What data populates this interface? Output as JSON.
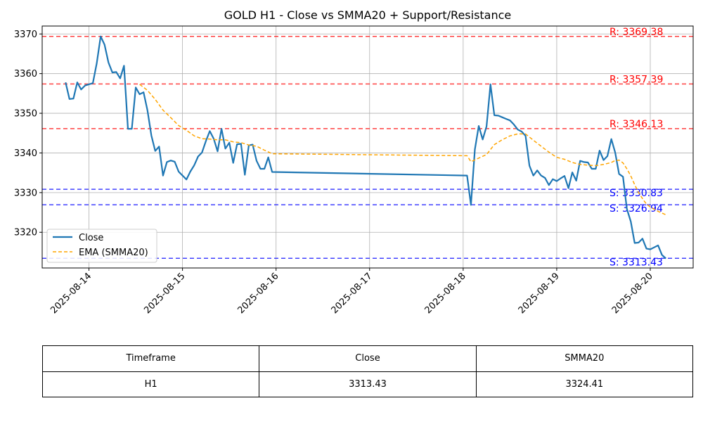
{
  "chart_data": {
    "type": "line",
    "title": "GOLD H1 - Close vs SMMA20 + Support/Resistance",
    "xlabel": "",
    "ylabel": "",
    "xlim": [
      "2025-08-13T12:00",
      "2025-08-20T11:00"
    ],
    "ylim": [
      3311.0,
      3372.0
    ],
    "y_ticks": [
      3320,
      3330,
      3340,
      3350,
      3360,
      3370
    ],
    "x_ticks": [
      "2025-08-14",
      "2025-08-15",
      "2025-08-16",
      "2025-08-17",
      "2025-08-18",
      "2025-08-19",
      "2025-08-20"
    ],
    "grid": true,
    "legend_position": "lower-left",
    "series": [
      {
        "name": "Close",
        "color": "#1f77b4",
        "style": "solid",
        "points": [
          [
            "2025-08-13T18:00",
            3357.8
          ],
          [
            "2025-08-13T19:00",
            3353.6
          ],
          [
            "2025-08-13T20:00",
            3353.7
          ],
          [
            "2025-08-13T21:00",
            3357.8
          ],
          [
            "2025-08-13T22:00",
            3356.0
          ],
          [
            "2025-08-13T23:00",
            3357.0
          ],
          [
            "2025-08-14T01:00",
            3357.6
          ],
          [
            "2025-08-14T02:00",
            3362.6
          ],
          [
            "2025-08-14T03:00",
            3369.4
          ],
          [
            "2025-08-14T04:00",
            3367.3
          ],
          [
            "2025-08-14T05:00",
            3362.8
          ],
          [
            "2025-08-14T06:00",
            3360.3
          ],
          [
            "2025-08-14T07:00",
            3360.4
          ],
          [
            "2025-08-14T08:00",
            3358.8
          ],
          [
            "2025-08-14T09:00",
            3362.0
          ],
          [
            "2025-08-14T10:00",
            3346.1
          ],
          [
            "2025-08-14T11:00",
            3346.1
          ],
          [
            "2025-08-14T12:00",
            3356.5
          ],
          [
            "2025-08-14T13:00",
            3354.8
          ],
          [
            "2025-08-14T14:00",
            3355.3
          ],
          [
            "2025-08-14T15:00",
            3350.8
          ],
          [
            "2025-08-14T16:00",
            3344.4
          ],
          [
            "2025-08-14T17:00",
            3340.5
          ],
          [
            "2025-08-14T18:00",
            3341.6
          ],
          [
            "2025-08-14T19:00",
            3334.3
          ],
          [
            "2025-08-14T20:00",
            3337.7
          ],
          [
            "2025-08-14T21:00",
            3338.1
          ],
          [
            "2025-08-14T22:00",
            3337.8
          ],
          [
            "2025-08-14T23:00",
            3335.3
          ],
          [
            "2025-08-15T01:00",
            3333.3
          ],
          [
            "2025-08-15T02:00",
            3335.3
          ],
          [
            "2025-08-15T03:00",
            3336.9
          ],
          [
            "2025-08-15T04:00",
            3339.1
          ],
          [
            "2025-08-15T05:00",
            3340.1
          ],
          [
            "2025-08-15T06:00",
            3343.0
          ],
          [
            "2025-08-15T07:00",
            3345.5
          ],
          [
            "2025-08-15T08:00",
            3343.6
          ],
          [
            "2025-08-15T09:00",
            3340.4
          ],
          [
            "2025-08-15T10:00",
            3346.1
          ],
          [
            "2025-08-15T11:00",
            3341.1
          ],
          [
            "2025-08-15T12:00",
            3342.6
          ],
          [
            "2025-08-15T13:00",
            3337.5
          ],
          [
            "2025-08-15T14:00",
            3342.2
          ],
          [
            "2025-08-15T15:00",
            3342.3
          ],
          [
            "2025-08-15T16:00",
            3334.5
          ],
          [
            "2025-08-15T17:00",
            3341.9
          ],
          [
            "2025-08-15T18:00",
            3342.1
          ],
          [
            "2025-08-15T19:00",
            3338.0
          ],
          [
            "2025-08-15T20:00",
            3336.0
          ],
          [
            "2025-08-15T21:00",
            3336.0
          ],
          [
            "2025-08-15T22:00",
            3338.9
          ],
          [
            "2025-08-15T23:00",
            3335.2
          ],
          [
            "2025-08-18T01:00",
            3334.3
          ],
          [
            "2025-08-18T02:00",
            3326.9
          ],
          [
            "2025-08-18T03:00",
            3340.9
          ],
          [
            "2025-08-18T04:00",
            3346.8
          ],
          [
            "2025-08-18T05:00",
            3343.4
          ],
          [
            "2025-08-18T06:00",
            3346.7
          ],
          [
            "2025-08-18T07:00",
            3357.3
          ],
          [
            "2025-08-18T08:00",
            3349.5
          ],
          [
            "2025-08-18T09:00",
            3349.4
          ],
          [
            "2025-08-18T10:00",
            3349.0
          ],
          [
            "2025-08-18T11:00",
            3348.6
          ],
          [
            "2025-08-18T12:00",
            3348.2
          ],
          [
            "2025-08-18T13:00",
            3347.2
          ],
          [
            "2025-08-18T14:00",
            3345.9
          ],
          [
            "2025-08-18T15:00",
            3345.4
          ],
          [
            "2025-08-18T16:00",
            3344.3
          ],
          [
            "2025-08-18T17:00",
            3336.8
          ],
          [
            "2025-08-18T18:00",
            3334.3
          ],
          [
            "2025-08-18T19:00",
            3335.6
          ],
          [
            "2025-08-18T20:00",
            3334.3
          ],
          [
            "2025-08-18T21:00",
            3333.7
          ],
          [
            "2025-08-18T22:00",
            3331.9
          ],
          [
            "2025-08-18T23:00",
            3333.4
          ],
          [
            "2025-08-19T00:00",
            3332.9
          ],
          [
            "2025-08-19T01:00",
            3333.6
          ],
          [
            "2025-08-19T02:00",
            3334.2
          ],
          [
            "2025-08-19T03:00",
            3331.1
          ],
          [
            "2025-08-19T04:00",
            3335.1
          ],
          [
            "2025-08-19T05:00",
            3333.0
          ],
          [
            "2025-08-19T06:00",
            3338.0
          ],
          [
            "2025-08-19T07:00",
            3337.7
          ],
          [
            "2025-08-19T08:00",
            3337.6
          ],
          [
            "2025-08-19T09:00",
            3336.0
          ],
          [
            "2025-08-19T10:00",
            3336.0
          ],
          [
            "2025-08-19T11:00",
            3340.6
          ],
          [
            "2025-08-19T12:00",
            3338.2
          ],
          [
            "2025-08-19T13:00",
            3339.2
          ],
          [
            "2025-08-19T14:00",
            3343.5
          ],
          [
            "2025-08-19T15:00",
            3340.1
          ],
          [
            "2025-08-19T16:00",
            3334.7
          ],
          [
            "2025-08-19T17:00",
            3334.0
          ],
          [
            "2025-08-19T18:00",
            3325.9
          ],
          [
            "2025-08-19T19:00",
            3322.7
          ],
          [
            "2025-08-19T20:00",
            3317.3
          ],
          [
            "2025-08-19T21:00",
            3317.4
          ],
          [
            "2025-08-19T22:00",
            3318.4
          ],
          [
            "2025-08-19T23:00",
            3315.9
          ],
          [
            "2025-08-20T00:00",
            3315.7
          ],
          [
            "2025-08-20T01:00",
            3316.2
          ],
          [
            "2025-08-20T02:00",
            3316.7
          ],
          [
            "2025-08-20T03:00",
            3314.3
          ],
          [
            "2025-08-20T04:00",
            3313.4
          ]
        ]
      },
      {
        "name": "EMA (SMMA20)",
        "color": "#ffa500",
        "style": "dashed",
        "points": [
          [
            "2025-08-14T13:00",
            3357.3
          ],
          [
            "2025-08-14T15:00",
            3355.8
          ],
          [
            "2025-08-14T17:00",
            3353.5
          ],
          [
            "2025-08-14T19:00",
            3350.8
          ],
          [
            "2025-08-14T21:00",
            3348.9
          ],
          [
            "2025-08-14T23:00",
            3346.9
          ],
          [
            "2025-08-15T01:00",
            3345.7
          ],
          [
            "2025-08-15T03:00",
            3344.3
          ],
          [
            "2025-08-15T05:00",
            3343.6
          ],
          [
            "2025-08-15T07:00",
            3343.5
          ],
          [
            "2025-08-15T09:00",
            3343.3
          ],
          [
            "2025-08-15T11:00",
            3343.3
          ],
          [
            "2025-08-15T13:00",
            3342.8
          ],
          [
            "2025-08-15T15:00",
            3342.6
          ],
          [
            "2025-08-15T17:00",
            3342.0
          ],
          [
            "2025-08-15T19:00",
            3341.7
          ],
          [
            "2025-08-15T21:00",
            3340.7
          ],
          [
            "2025-08-15T23:00",
            3339.8
          ],
          [
            "2025-08-18T01:00",
            3339.3
          ],
          [
            "2025-08-18T02:00",
            3337.8
          ],
          [
            "2025-08-18T04:00",
            3338.7
          ],
          [
            "2025-08-18T06:00",
            3339.6
          ],
          [
            "2025-08-18T08:00",
            3342.1
          ],
          [
            "2025-08-18T10:00",
            3343.3
          ],
          [
            "2025-08-18T12:00",
            3344.3
          ],
          [
            "2025-08-18T14:00",
            3344.8
          ],
          [
            "2025-08-18T16:00",
            3344.8
          ],
          [
            "2025-08-18T18:00",
            3343.2
          ],
          [
            "2025-08-18T20:00",
            3341.7
          ],
          [
            "2025-08-18T22:00",
            3340.2
          ],
          [
            "2025-08-19T00:00",
            3338.9
          ],
          [
            "2025-08-19T02:00",
            3338.4
          ],
          [
            "2025-08-19T04:00",
            3337.6
          ],
          [
            "2025-08-19T06:00",
            3337.1
          ],
          [
            "2025-08-19T08:00",
            3336.9
          ],
          [
            "2025-08-19T10:00",
            3336.8
          ],
          [
            "2025-08-19T12:00",
            3337.1
          ],
          [
            "2025-08-19T14:00",
            3337.6
          ],
          [
            "2025-08-19T15:00",
            3338.1
          ],
          [
            "2025-08-19T16:00",
            3338.2
          ],
          [
            "2025-08-19T17:00",
            3337.5
          ],
          [
            "2025-08-19T18:00",
            3336.0
          ],
          [
            "2025-08-19T19:00",
            3334.2
          ],
          [
            "2025-08-19T20:00",
            3332.0
          ],
          [
            "2025-08-19T21:00",
            3330.0
          ],
          [
            "2025-08-19T22:00",
            3328.5
          ],
          [
            "2025-08-19T23:00",
            3327.1
          ],
          [
            "2025-08-20T00:00",
            3326.4
          ],
          [
            "2025-08-20T01:00",
            3325.8
          ],
          [
            "2025-08-20T02:00",
            3325.3
          ],
          [
            "2025-08-20T04:00",
            3324.4
          ]
        ]
      }
    ],
    "levels": [
      {
        "kind": "resistance",
        "value": 3369.38,
        "label": "R: 3369.38",
        "color": "#ff0000"
      },
      {
        "kind": "resistance",
        "value": 3357.39,
        "label": "R: 3357.39",
        "color": "#ff0000"
      },
      {
        "kind": "resistance",
        "value": 3346.13,
        "label": "R: 3346.13",
        "color": "#ff0000"
      },
      {
        "kind": "support",
        "value": 3330.83,
        "label": "S: 3330.83",
        "color": "#0000ff"
      },
      {
        "kind": "support",
        "value": 3326.94,
        "label": "S: 3326.94",
        "color": "#0000ff"
      },
      {
        "kind": "support",
        "value": 3313.43,
        "label": "S: 3313.43",
        "color": "#0000ff"
      }
    ]
  },
  "table": {
    "headers": [
      "Timeframe",
      "Close",
      "SMMA20"
    ],
    "row": [
      "H1",
      "3313.43",
      "3324.41"
    ]
  }
}
